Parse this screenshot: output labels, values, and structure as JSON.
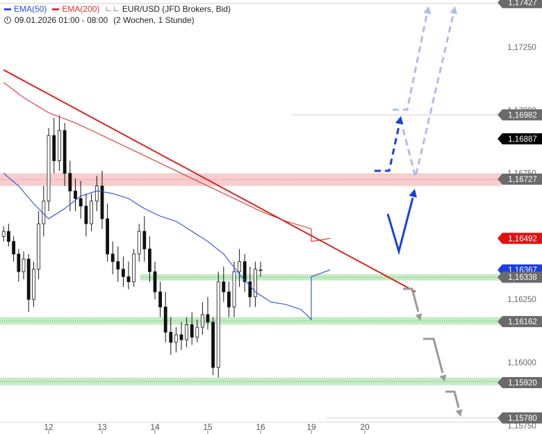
{
  "legend": {
    "ema50_label": "EMA(50)",
    "ema200_label": "EMA(200)",
    "instrument_label": "EUR/USD (JFD Brokers, Bid)",
    "time_label": "09.01.2026 01:00 - 08:00",
    "period_label": "(2 Wochen, 1 Stunde)"
  },
  "colors": {
    "ema50": "#2a4fd6",
    "ema200": "#e03030",
    "trendline": "#e02020",
    "resistance_zone": "#f4b8b8",
    "support_zone": "#a8e0a8",
    "candle": "#111111",
    "arrow_blue": "#1a3fe0",
    "arrow_light_blue": "#aebcf2",
    "arrow_gray": "#999999",
    "price_box_dark": "#000000",
    "price_box_red": "#e01010",
    "price_box_blue": "#1a3fe0",
    "price_box_gray": "#6a6a6a"
  },
  "chart_data": {
    "type": "candlestick",
    "title": "EUR/USD (JFD Brokers, Bid)",
    "xlabel": "",
    "ylabel": "",
    "x_tick_labels": [
      "12",
      "13",
      "14",
      "15",
      "16",
      "19",
      "20"
    ],
    "y_tick_labels": [
      "1,17250",
      "1,17000",
      "1,16750",
      "1,16500",
      "1,16250",
      "1,16000",
      "1,15750"
    ],
    "ylim": [
      1.1575,
      1.1743
    ],
    "grid": false,
    "price_labels": [
      {
        "label": "1,17427",
        "value": 1.17427,
        "style": "gray"
      },
      {
        "label": "1,16982",
        "value": 1.16982,
        "style": "gray"
      },
      {
        "label": "1,16887",
        "value": 1.16887,
        "style": "dark"
      },
      {
        "label": "1,16727",
        "value": 1.16727,
        "style": "gray"
      },
      {
        "label": "1,16492",
        "value": 1.16492,
        "style": "red"
      },
      {
        "label": "1,16367",
        "value": 1.16367,
        "style": "blue"
      },
      {
        "label": "1,16338",
        "value": 1.16338,
        "style": "gray"
      },
      {
        "label": "1,16162",
        "value": 1.16162,
        "style": "gray"
      },
      {
        "label": "1,15920",
        "value": 1.1592,
        "style": "gray"
      },
      {
        "label": "1,15780",
        "value": 1.1578,
        "style": "gray"
      }
    ],
    "zones": [
      {
        "kind": "resistance",
        "low": 1.167,
        "high": 1.1675
      },
      {
        "kind": "support",
        "low": 1.16325,
        "high": 1.1635
      },
      {
        "kind": "support",
        "low": 1.1615,
        "high": 1.1618
      },
      {
        "kind": "support",
        "low": 1.1591,
        "high": 1.1594
      }
    ],
    "hlines": [
      1.16982,
      1.17427,
      1.1578
    ],
    "trendline": {
      "x_start": 11.1,
      "y_start": 1.1716,
      "x_end": 20.95,
      "y_end": 1.1628
    },
    "ema200": [
      [
        11.1,
        1.1711
      ],
      [
        11.5,
        1.1705
      ],
      [
        12.0,
        1.1699
      ],
      [
        12.5,
        1.1695
      ],
      [
        13.0,
        1.169
      ],
      [
        13.5,
        1.1685
      ],
      [
        14.0,
        1.168
      ],
      [
        14.5,
        1.1675
      ],
      [
        15.0,
        1.167
      ],
      [
        15.5,
        1.1665
      ],
      [
        16.0,
        1.166
      ],
      [
        16.5,
        1.1656
      ],
      [
        17.0,
        1.1653
      ],
      [
        17.5,
        1.1651
      ],
      [
        18.0,
        1.165
      ],
      [
        18.3,
        1.1649
      ],
      [
        18.6,
        1.1648
      ],
      [
        19.0,
        1.1648
      ],
      [
        19.35,
        1.16492
      ]
    ],
    "ema50": [
      [
        11.1,
        1.1675
      ],
      [
        11.4,
        1.167
      ],
      [
        11.7,
        1.1663
      ],
      [
        12.0,
        1.1657
      ],
      [
        12.3,
        1.1661
      ],
      [
        12.6,
        1.1666
      ],
      [
        12.9,
        1.1668
      ],
      [
        13.2,
        1.1667
      ],
      [
        13.5,
        1.1665
      ],
      [
        13.8,
        1.1661
      ],
      [
        14.1,
        1.1658
      ],
      [
        14.4,
        1.1656
      ],
      [
        14.7,
        1.1652
      ],
      [
        15.0,
        1.1648
      ],
      [
        15.3,
        1.1643
      ],
      [
        15.6,
        1.1635
      ],
      [
        15.9,
        1.1628
      ],
      [
        16.2,
        1.1624
      ],
      [
        16.5,
        1.1623
      ],
      [
        16.8,
        1.1621
      ],
      [
        17.0,
        1.1617
      ],
      [
        17.2,
        1.1617
      ],
      [
        17.5,
        1.1619
      ],
      [
        17.8,
        1.1622
      ],
      [
        18.1,
        1.1627
      ],
      [
        18.4,
        1.1631
      ],
      [
        18.7,
        1.1633
      ],
      [
        19.0,
        1.1634
      ],
      [
        19.35,
        1.16367
      ]
    ],
    "candles": [
      [
        11.1,
        1.165,
        1.1654,
        1.1648,
        1.1652
      ],
      [
        11.2,
        1.1652,
        1.1655,
        1.1646,
        1.1648
      ],
      [
        11.3,
        1.1648,
        1.165,
        1.164,
        1.1643
      ],
      [
        11.4,
        1.1643,
        1.1645,
        1.1632,
        1.1636
      ],
      [
        11.5,
        1.1636,
        1.1644,
        1.1633,
        1.1641
      ],
      [
        11.6,
        1.1641,
        1.1643,
        1.162,
        1.1625
      ],
      [
        11.7,
        1.1625,
        1.164,
        1.1622,
        1.1637
      ],
      [
        11.8,
        1.1637,
        1.166,
        1.1633,
        1.1655
      ],
      [
        11.9,
        1.1655,
        1.167,
        1.165,
        1.1664
      ],
      [
        12.0,
        1.1664,
        1.1693,
        1.166,
        1.169
      ],
      [
        12.1,
        1.169,
        1.1697,
        1.1675,
        1.168
      ],
      [
        12.2,
        1.168,
        1.1698,
        1.1676,
        1.1692
      ],
      [
        12.3,
        1.1692,
        1.1695,
        1.167,
        1.1675
      ],
      [
        12.4,
        1.1675,
        1.168,
        1.166,
        1.1668
      ],
      [
        12.5,
        1.1668,
        1.1673,
        1.166,
        1.1665
      ],
      [
        12.6,
        1.1665,
        1.1672,
        1.1657,
        1.1662
      ],
      [
        12.7,
        1.1662,
        1.1667,
        1.165,
        1.1655
      ],
      [
        12.8,
        1.1655,
        1.1667,
        1.1652,
        1.1664
      ],
      [
        12.9,
        1.1664,
        1.1674,
        1.166,
        1.167
      ],
      [
        13.0,
        1.167,
        1.1676,
        1.1653,
        1.1657
      ],
      [
        13.1,
        1.1657,
        1.1663,
        1.164,
        1.1643
      ],
      [
        13.2,
        1.1643,
        1.1648,
        1.1635,
        1.164
      ],
      [
        13.3,
        1.164,
        1.1646,
        1.1632,
        1.1637
      ],
      [
        13.4,
        1.1637,
        1.1642,
        1.163,
        1.1634
      ],
      [
        13.5,
        1.1634,
        1.164,
        1.1629,
        1.1632
      ],
      [
        13.6,
        1.1632,
        1.1645,
        1.163,
        1.1643
      ],
      [
        13.7,
        1.1643,
        1.1655,
        1.164,
        1.1652
      ],
      [
        13.8,
        1.1652,
        1.1658,
        1.164,
        1.1645
      ],
      [
        13.9,
        1.1645,
        1.165,
        1.1632,
        1.1636
      ],
      [
        14.0,
        1.1636,
        1.164,
        1.1625,
        1.1628
      ],
      [
        14.1,
        1.1628,
        1.1632,
        1.1618,
        1.1622
      ],
      [
        14.2,
        1.1622,
        1.1628,
        1.1608,
        1.1612
      ],
      [
        14.3,
        1.1612,
        1.1618,
        1.1603,
        1.1608
      ],
      [
        14.4,
        1.1608,
        1.1614,
        1.1604,
        1.1611
      ],
      [
        14.5,
        1.1611,
        1.1616,
        1.1605,
        1.1609
      ],
      [
        14.6,
        1.1609,
        1.1618,
        1.1606,
        1.1615
      ],
      [
        14.7,
        1.1615,
        1.162,
        1.1607,
        1.161
      ],
      [
        14.8,
        1.161,
        1.1617,
        1.1608,
        1.1614
      ],
      [
        14.9,
        1.1614,
        1.1624,
        1.1611,
        1.1619
      ],
      [
        15.0,
        1.1619,
        1.1626,
        1.1613,
        1.1616
      ],
      [
        15.1,
        1.1616,
        1.1618,
        1.1595,
        1.1598
      ],
      [
        15.2,
        1.1598,
        1.1636,
        1.1594,
        1.1632
      ],
      [
        15.3,
        1.1632,
        1.1638,
        1.1624,
        1.1628
      ],
      [
        15.4,
        1.1628,
        1.1632,
        1.1618,
        1.1622
      ],
      [
        15.5,
        1.1622,
        1.164,
        1.1618,
        1.1636
      ],
      [
        15.6,
        1.1636,
        1.1645,
        1.163,
        1.164
      ],
      [
        15.7,
        1.164,
        1.1643,
        1.1628,
        1.1632
      ],
      [
        15.8,
        1.1632,
        1.1638,
        1.1622,
        1.1626
      ],
      [
        15.9,
        1.1626,
        1.164,
        1.1622,
        1.1637
      ],
      [
        16.0,
        1.16367,
        1.164,
        1.1634,
        1.16367
      ]
    ]
  }
}
